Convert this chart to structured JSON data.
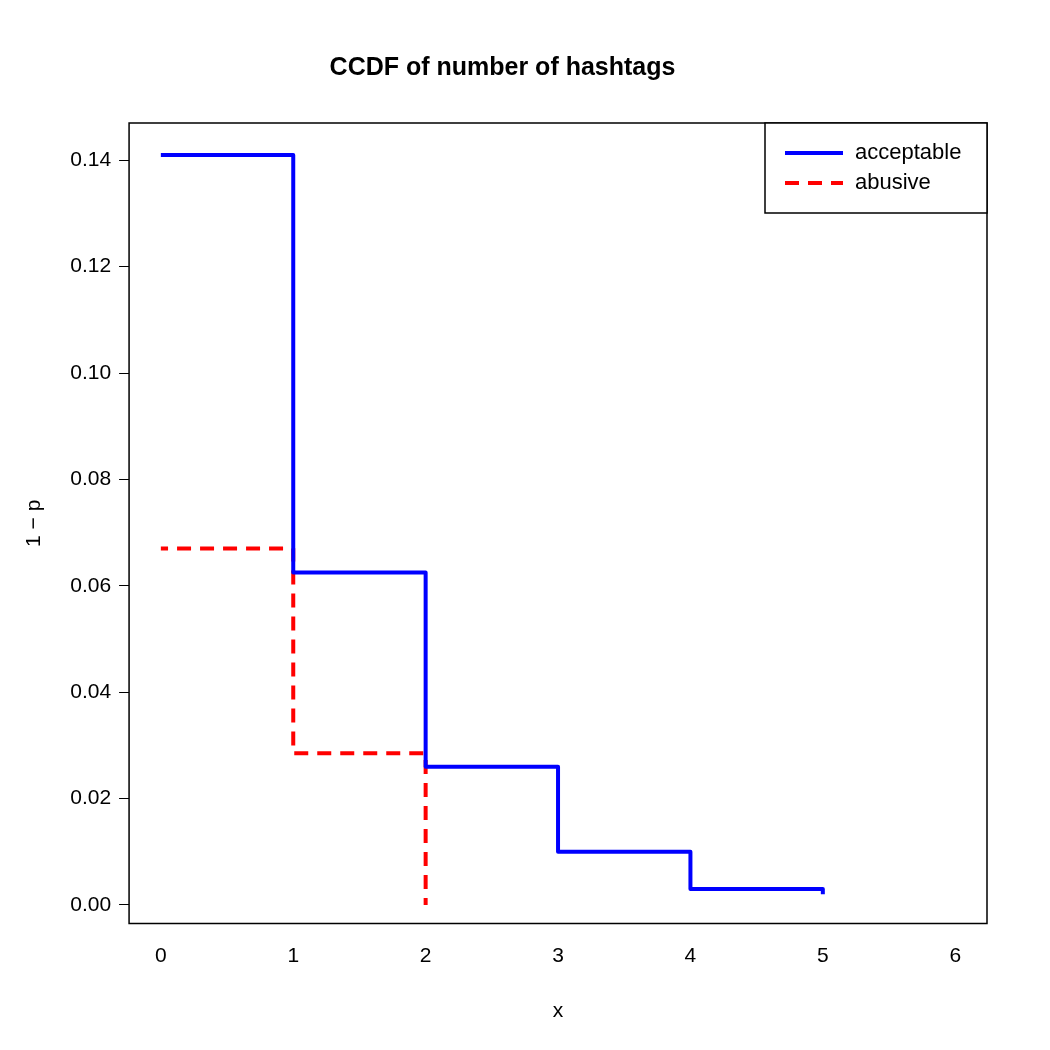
{
  "chart_data": {
    "type": "step",
    "title": "CCDF of number of hashtags",
    "xlabel": "x",
    "ylabel": "1 − p",
    "xlim": [
      -0.24,
      6.24
    ],
    "xticks": [
      0,
      1,
      2,
      3,
      4,
      5,
      6
    ],
    "ylim": [
      -0.0035,
      0.147
    ],
    "yticks": [
      {
        "value": 0,
        "label": "0.00"
      },
      {
        "value": 0.02,
        "label": "0.02"
      },
      {
        "value": 0.04,
        "label": "0.04"
      },
      {
        "value": 0.06,
        "label": "0.06"
      },
      {
        "value": 0.08,
        "label": "0.08"
      },
      {
        "value": 0.1,
        "label": "0.10"
      },
      {
        "value": 0.12,
        "label": "0.12"
      },
      {
        "value": 0.14,
        "label": "0.14"
      }
    ],
    "grid": false,
    "legend": "top right",
    "series": [
      {
        "name": "acceptable",
        "color": "#0000ff",
        "line_style": "solid",
        "x": [
          0,
          1,
          2,
          3,
          4,
          5
        ],
        "values": [
          0.141,
          0.0625,
          0.026,
          0.01,
          0.003,
          0.002
        ]
      },
      {
        "name": "abusive",
        "color": "#ff0000",
        "line_style": "dashed",
        "x": [
          0,
          1,
          2
        ],
        "values": [
          0.067,
          0.0285,
          0
        ]
      }
    ]
  }
}
